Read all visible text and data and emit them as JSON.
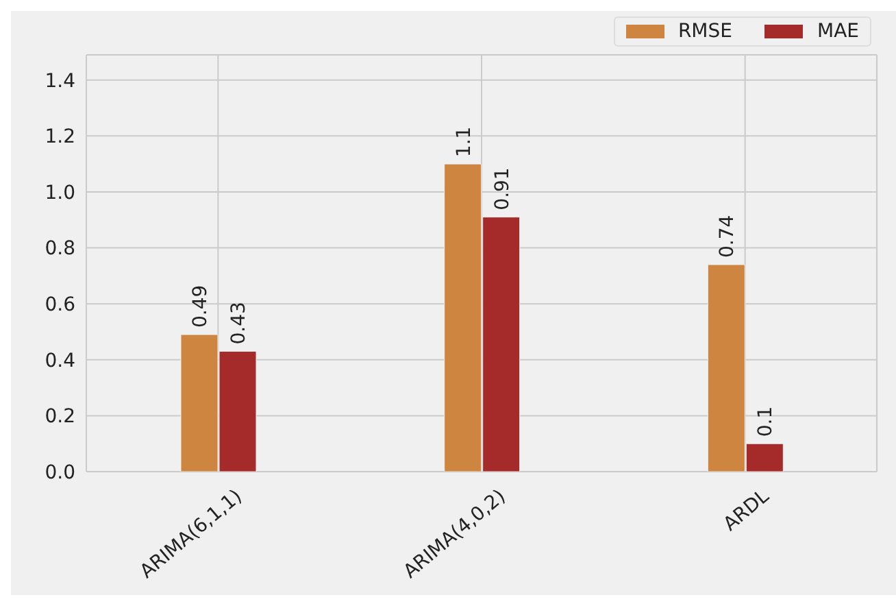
{
  "chart_data": {
    "type": "bar",
    "categories": [
      "ARIMA(6,1,1)",
      "ARIMA(4,0,2)",
      "ARDL"
    ],
    "series": [
      {
        "name": "RMSE",
        "color": "#cd853f",
        "values": [
          0.49,
          1.1,
          0.74
        ]
      },
      {
        "name": "MAE",
        "color": "#a52a2a",
        "values": [
          0.43,
          0.91,
          0.1
        ]
      }
    ],
    "ylim": [
      0,
      1.49
    ],
    "yticks": [
      {
        "value": 0,
        "label": "0.0"
      },
      0.2,
      0.4,
      0.6,
      0.8,
      {
        "value": 1,
        "label": "1.0"
      },
      1.2,
      1.4
    ],
    "grid": true,
    "legend": "top right",
    "data_labels": true
  }
}
